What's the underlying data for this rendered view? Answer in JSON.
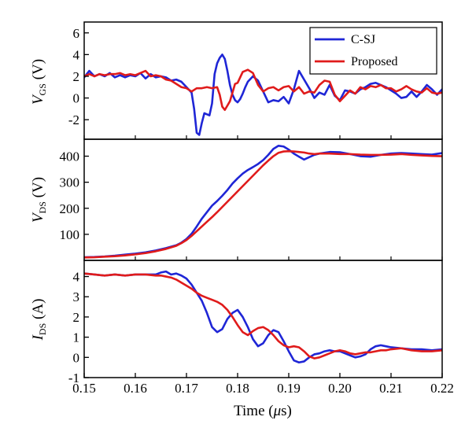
{
  "chart_data": {
    "type": "line",
    "xlabel": {
      "text": "Time (",
      "symbol": "μ",
      "unit": "s)"
    },
    "xlim": [
      0.15,
      0.22
    ],
    "xticks": [
      0.15,
      0.16,
      0.17,
      0.18,
      0.19,
      0.2,
      0.21,
      0.22
    ],
    "xtick_labels": [
      "0.15",
      "0.16",
      "0.17",
      "0.18",
      "0.19",
      "0.20",
      "0.21",
      "0.22"
    ],
    "colors": {
      "C-SJ": "#1f26d6",
      "Proposed": "#e01b1b"
    },
    "legend": {
      "position": "top-right",
      "panel": "vgs",
      "entries": [
        "C-SJ",
        "Proposed"
      ]
    },
    "panels": [
      {
        "id": "vgs",
        "ylabel": {
          "main": "V",
          "sub": "GS",
          "unit": " (V)"
        },
        "ylim": [
          -3.8,
          7
        ],
        "yticks": [
          -2,
          0,
          2,
          4,
          6
        ],
        "ytick_labels": [
          "-2",
          "0",
          "2",
          "4",
          "6"
        ],
        "series": [
          {
            "name": "C-SJ",
            "x": [
              0.15,
              0.151,
              0.152,
              0.153,
              0.154,
              0.155,
              0.156,
              0.157,
              0.158,
              0.159,
              0.16,
              0.161,
              0.162,
              0.163,
              0.164,
              0.165,
              0.166,
              0.167,
              0.168,
              0.169,
              0.17,
              0.171,
              0.1715,
              0.172,
              0.1725,
              0.173,
              0.1735,
              0.174,
              0.1745,
              0.175,
              0.1755,
              0.176,
              0.1765,
              0.177,
              0.1775,
              0.178,
              0.1785,
              0.179,
              0.1795,
              0.18,
              0.1805,
              0.181,
              0.1815,
              0.182,
              0.183,
              0.184,
              0.185,
              0.186,
              0.187,
              0.188,
              0.189,
              0.19,
              0.191,
              0.192,
              0.193,
              0.194,
              0.195,
              0.196,
              0.197,
              0.198,
              0.199,
              0.2,
              0.201,
              0.202,
              0.203,
              0.204,
              0.205,
              0.206,
              0.207,
              0.208,
              0.209,
              0.21,
              0.211,
              0.212,
              0.213,
              0.214,
              0.215,
              0.216,
              0.217,
              0.218,
              0.219,
              0.22
            ],
            "y": [
              1.9,
              2.5,
              2.0,
              2.2,
              2.0,
              2.3,
              1.9,
              2.1,
              1.9,
              2.1,
              2.0,
              2.3,
              1.8,
              2.2,
              1.9,
              2.0,
              1.9,
              1.6,
              1.7,
              1.5,
              1.0,
              0.5,
              -1.0,
              -3.2,
              -3.4,
              -2.3,
              -1.4,
              -1.5,
              -1.6,
              -0.5,
              2.2,
              3.2,
              3.7,
              4.0,
              3.6,
              2.5,
              1.2,
              0.3,
              -0.2,
              -0.4,
              -0.1,
              0.4,
              1.0,
              1.5,
              2.0,
              1.6,
              0.6,
              -0.4,
              -0.2,
              -0.3,
              0.1,
              -0.5,
              0.8,
              2.5,
              1.7,
              0.9,
              0.0,
              0.5,
              0.3,
              1.2,
              0.2,
              -0.2,
              0.7,
              0.6,
              0.4,
              0.8,
              1.0,
              1.3,
              1.4,
              1.2,
              1.0,
              0.7,
              0.4,
              0.0,
              0.1,
              0.6,
              0.1,
              0.6,
              1.2,
              0.8,
              0.3,
              0.8
            ]
          },
          {
            "name": "Proposed",
            "x": [
              0.15,
              0.151,
              0.152,
              0.153,
              0.154,
              0.155,
              0.156,
              0.157,
              0.158,
              0.159,
              0.16,
              0.161,
              0.162,
              0.163,
              0.164,
              0.165,
              0.166,
              0.167,
              0.168,
              0.169,
              0.17,
              0.171,
              0.172,
              0.173,
              0.174,
              0.175,
              0.176,
              0.1765,
              0.177,
              0.1775,
              0.178,
              0.1785,
              0.179,
              0.1795,
              0.18,
              0.181,
              0.182,
              0.183,
              0.184,
              0.185,
              0.186,
              0.187,
              0.188,
              0.189,
              0.19,
              0.191,
              0.192,
              0.193,
              0.194,
              0.195,
              0.196,
              0.197,
              0.198,
              0.199,
              0.2,
              0.201,
              0.202,
              0.203,
              0.204,
              0.205,
              0.206,
              0.207,
              0.208,
              0.209,
              0.21,
              0.211,
              0.212,
              0.213,
              0.214,
              0.215,
              0.216,
              0.217,
              0.218,
              0.219,
              0.22
            ],
            "y": [
              2.0,
              2.2,
              2.0,
              2.2,
              2.1,
              2.2,
              2.2,
              2.3,
              2.1,
              2.2,
              2.1,
              2.3,
              2.5,
              2.0,
              2.1,
              2.0,
              1.7,
              1.6,
              1.3,
              1.0,
              0.9,
              0.6,
              0.9,
              0.9,
              1.0,
              0.9,
              1.0,
              0.3,
              -0.8,
              -1.1,
              -0.7,
              -0.3,
              0.5,
              1.3,
              1.4,
              2.4,
              2.6,
              2.3,
              1.2,
              0.6,
              0.9,
              1.0,
              0.7,
              1.0,
              1.1,
              0.6,
              1.0,
              0.4,
              0.6,
              0.5,
              1.2,
              1.6,
              1.5,
              0.3,
              -0.3,
              0.2,
              0.7,
              0.4,
              1.0,
              0.8,
              1.1,
              1.0,
              1.2,
              0.9,
              0.9,
              0.6,
              0.8,
              1.1,
              0.8,
              0.6,
              0.5,
              0.9,
              0.5,
              0.4,
              0.5
            ]
          }
        ]
      },
      {
        "id": "vds",
        "ylabel": {
          "main": "V",
          "sub": "DS",
          "unit": " (V)"
        },
        "ylim": [
          0,
          465
        ],
        "yticks": [
          100,
          200,
          300,
          400
        ],
        "ytick_labels": [
          "100",
          "200",
          "300",
          "400"
        ],
        "series": [
          {
            "name": "C-SJ",
            "x": [
              0.15,
              0.152,
              0.154,
              0.156,
              0.158,
              0.16,
              0.162,
              0.164,
              0.166,
              0.168,
              0.169,
              0.17,
              0.171,
              0.172,
              0.173,
              0.174,
              0.175,
              0.176,
              0.177,
              0.178,
              0.179,
              0.18,
              0.181,
              0.182,
              0.183,
              0.184,
              0.185,
              0.186,
              0.187,
              0.188,
              0.189,
              0.19,
              0.191,
              0.192,
              0.193,
              0.194,
              0.195,
              0.196,
              0.198,
              0.2,
              0.202,
              0.204,
              0.206,
              0.208,
              0.21,
              0.212,
              0.214,
              0.216,
              0.218,
              0.22
            ],
            "y": [
              12,
              13,
              15,
              18,
              22,
              26,
              31,
              38,
              47,
              58,
              68,
              82,
              102,
              130,
              160,
              185,
              210,
              228,
              248,
              270,
              295,
              315,
              333,
              347,
              358,
              370,
              385,
              405,
              428,
              440,
              437,
              425,
              410,
              398,
              387,
              396,
              405,
              410,
              416,
              415,
              408,
              400,
              398,
              405,
              410,
              412,
              410,
              408,
              406,
              412
            ]
          },
          {
            "name": "Proposed",
            "x": [
              0.15,
              0.152,
              0.154,
              0.156,
              0.158,
              0.16,
              0.162,
              0.164,
              0.166,
              0.168,
              0.169,
              0.17,
              0.171,
              0.172,
              0.173,
              0.174,
              0.175,
              0.176,
              0.177,
              0.178,
              0.179,
              0.18,
              0.181,
              0.182,
              0.183,
              0.184,
              0.185,
              0.186,
              0.187,
              0.188,
              0.189,
              0.19,
              0.191,
              0.192,
              0.193,
              0.194,
              0.195,
              0.196,
              0.198,
              0.2,
              0.202,
              0.204,
              0.206,
              0.208,
              0.21,
              0.212,
              0.214,
              0.216,
              0.218,
              0.22
            ],
            "y": [
              11,
              12,
              14,
              16,
              19,
              23,
              28,
              35,
              44,
              56,
              66,
              78,
              94,
              112,
              130,
              148,
              166,
              185,
              205,
              225,
              245,
              265,
              285,
              305,
              325,
              345,
              365,
              383,
              400,
              413,
              418,
              419,
              418,
              416,
              414,
              410,
              408,
              410,
              410,
              408,
              408,
              406,
              405,
              405,
              406,
              408,
              405,
              403,
              401,
              400
            ]
          }
        ]
      },
      {
        "id": "ids",
        "ylabel": {
          "main": "I",
          "sub": "DS",
          "unit": " (A)"
        },
        "ylim": [
          -1,
          4.8
        ],
        "yticks": [
          -1,
          0,
          1,
          2,
          3,
          4
        ],
        "ytick_labels": [
          "-1",
          "0",
          "1",
          "2",
          "3",
          "4"
        ],
        "series": [
          {
            "name": "C-SJ",
            "x": [
              0.15,
              0.152,
              0.154,
              0.156,
              0.158,
              0.16,
              0.162,
              0.164,
              0.165,
              0.166,
              0.167,
              0.168,
              0.169,
              0.17,
              0.171,
              0.172,
              0.173,
              0.174,
              0.175,
              0.176,
              0.177,
              0.178,
              0.179,
              0.18,
              0.181,
              0.182,
              0.183,
              0.184,
              0.185,
              0.186,
              0.187,
              0.188,
              0.189,
              0.19,
              0.191,
              0.192,
              0.193,
              0.194,
              0.195,
              0.196,
              0.197,
              0.198,
              0.199,
              0.2,
              0.201,
              0.202,
              0.203,
              0.204,
              0.205,
              0.206,
              0.207,
              0.208,
              0.209,
              0.21,
              0.212,
              0.214,
              0.216,
              0.218,
              0.22
            ],
            "y": [
              4.15,
              4.1,
              4.05,
              4.1,
              4.05,
              4.1,
              4.1,
              4.1,
              4.2,
              4.25,
              4.1,
              4.15,
              4.05,
              3.9,
              3.6,
              3.2,
              2.8,
              2.2,
              1.5,
              1.25,
              1.4,
              1.9,
              2.2,
              2.35,
              2.0,
              1.5,
              0.9,
              0.55,
              0.7,
              1.1,
              1.35,
              1.25,
              0.8,
              0.3,
              -0.15,
              -0.25,
              -0.2,
              0.0,
              0.15,
              0.2,
              0.3,
              0.35,
              0.3,
              0.3,
              0.2,
              0.1,
              0.0,
              0.05,
              0.15,
              0.4,
              0.55,
              0.6,
              0.55,
              0.5,
              0.45,
              0.4,
              0.4,
              0.35,
              0.4
            ]
          },
          {
            "name": "Proposed",
            "x": [
              0.15,
              0.152,
              0.154,
              0.156,
              0.158,
              0.16,
              0.162,
              0.164,
              0.165,
              0.166,
              0.167,
              0.168,
              0.169,
              0.17,
              0.171,
              0.172,
              0.173,
              0.174,
              0.175,
              0.176,
              0.177,
              0.178,
              0.179,
              0.18,
              0.181,
              0.182,
              0.183,
              0.184,
              0.185,
              0.186,
              0.187,
              0.188,
              0.189,
              0.19,
              0.191,
              0.192,
              0.193,
              0.194,
              0.195,
              0.196,
              0.197,
              0.198,
              0.199,
              0.2,
              0.201,
              0.202,
              0.203,
              0.204,
              0.205,
              0.206,
              0.207,
              0.208,
              0.209,
              0.21,
              0.212,
              0.214,
              0.216,
              0.218,
              0.22
            ],
            "y": [
              4.15,
              4.1,
              4.05,
              4.1,
              4.05,
              4.1,
              4.1,
              4.05,
              4.05,
              4.0,
              3.95,
              3.85,
              3.7,
              3.55,
              3.4,
              3.2,
              3.05,
              2.95,
              2.85,
              2.75,
              2.6,
              2.35,
              2.0,
              1.6,
              1.25,
              1.1,
              1.3,
              1.45,
              1.5,
              1.35,
              1.1,
              0.8,
              0.6,
              0.5,
              0.55,
              0.5,
              0.3,
              0.05,
              -0.05,
              0.0,
              0.1,
              0.2,
              0.3,
              0.35,
              0.3,
              0.2,
              0.15,
              0.2,
              0.25,
              0.25,
              0.3,
              0.35,
              0.35,
              0.4,
              0.45,
              0.35,
              0.3,
              0.3,
              0.35
            ]
          }
        ]
      }
    ]
  }
}
